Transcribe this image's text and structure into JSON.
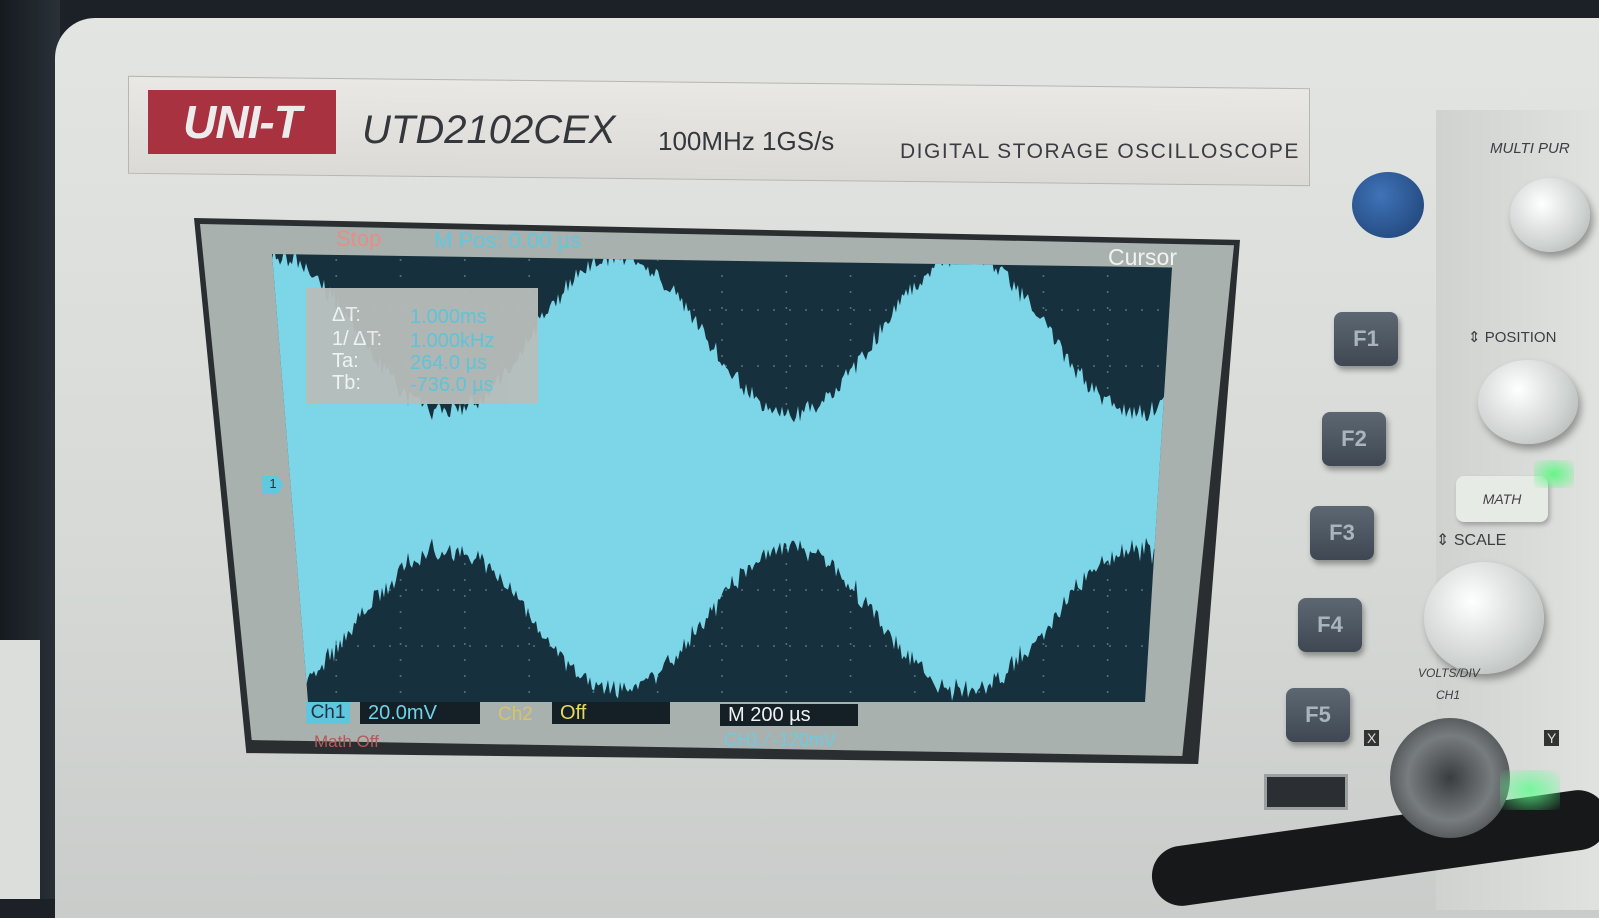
{
  "device": {
    "brand": "UNI-T",
    "model": "UTD2102CEX",
    "spec": "100MHz  1GS/s",
    "product_type": "DIGITAL STORAGE OSCILLOSCOPE"
  },
  "screen": {
    "status": "Stop",
    "m_pos": "M Pos: 0.00 µs",
    "menu_title": "Cursor",
    "cursor_readout": {
      "delta_t_label": "ΔT:",
      "delta_t_value": "1.000ms",
      "inv_delta_t_label": "1/ ΔT:",
      "inv_delta_t_value": "1.000kHz",
      "ta_label": "Ta:",
      "ta_value": "264.0 µs",
      "tb_label": "Tb:",
      "tb_value": "-736.0 µs"
    },
    "channel_marker": "1",
    "ch1_label": "Ch1",
    "ch1_scale": "20.0mV",
    "ch2_label": "Ch2",
    "ch2_scale": "Off",
    "timebase": "M 200 µs",
    "math": "Math  Off",
    "trigger": "CH1  ∕  -120mV"
  },
  "panel": {
    "f_keys": [
      "F1",
      "F2",
      "F3",
      "F4",
      "F5"
    ],
    "multi_purpose": "MULTI PUR",
    "position": "POSITION",
    "math_button": "MATH",
    "scale": "SCALE",
    "volts": "VOLTS/DIV",
    "ch1": "CH1",
    "x_label": "X",
    "y_label": "Y"
  },
  "colors": {
    "trace": "#7cd6e8",
    "background": "#16313d",
    "stop": "#e58f84",
    "ch2": "#e7d862"
  }
}
